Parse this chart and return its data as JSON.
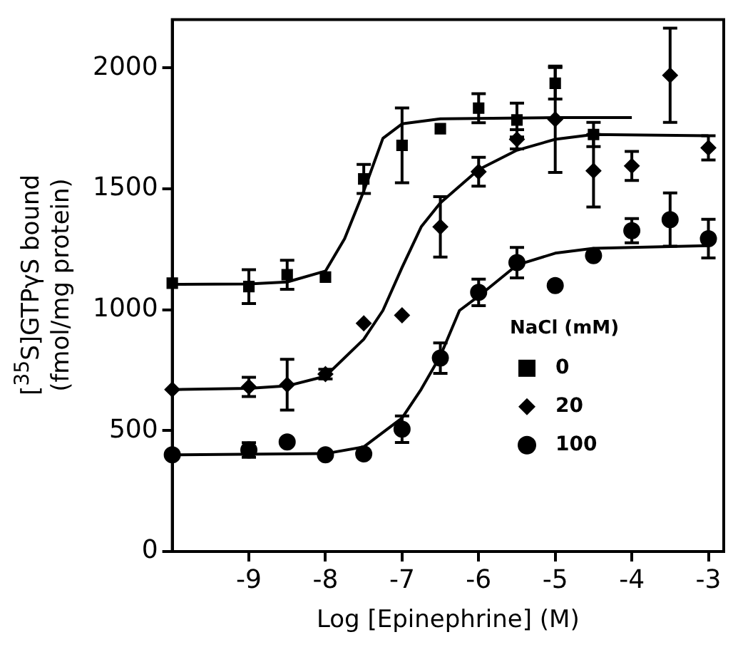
{
  "chart_data": {
    "type": "scatter",
    "xlabel": "Log [Epinephrine] (M)",
    "ylabel": "[$^{35}$S]GTPγS bound\n(fmol/mg protein)",
    "legend_title": "NaCl (mM)",
    "legend": "center right",
    "xlim": [
      -10,
      -2.8
    ],
    "xticks": [
      -9,
      -8,
      -7,
      -6,
      -5,
      -4,
      -3
    ],
    "ylim": [
      0,
      2200
    ],
    "yticks": [
      0,
      500,
      1000,
      1500,
      2000
    ],
    "series": [
      {
        "name": "0",
        "color": "#000000",
        "marker": "square",
        "x": [
          -10,
          -9,
          -8.5,
          -8,
          -7.5,
          -7,
          -6.5,
          -6,
          -5.5,
          -5,
          -4.5
        ],
        "values": [
          1110,
          1096,
          1145,
          1135,
          1541,
          1680,
          1749,
          1834,
          1785,
          1937,
          1725
        ],
        "errors": [
          null,
          70,
          60,
          null,
          60,
          155,
          null,
          60,
          70,
          65,
          50
        ]
      },
      {
        "name": "20",
        "color": "#000000",
        "marker": "diamond",
        "x": [
          -10,
          -9,
          -8.5,
          -8,
          -7.5,
          -7,
          -6.5,
          -6,
          -5.5,
          -5,
          -4.5,
          -4,
          -3.5,
          -3
        ],
        "values": [
          670,
          681,
          690,
          734,
          944,
          977,
          1343,
          1571,
          1705,
          1788,
          1575,
          1595,
          1970,
          1670
        ],
        "errors": [
          null,
          40,
          105,
          20,
          null,
          null,
          125,
          60,
          40,
          220,
          150,
          60,
          195,
          50
        ]
      },
      {
        "name": "100",
        "color": "#000000",
        "marker": "circle",
        "x": [
          -10,
          -9,
          -8.5,
          -8,
          -7.5,
          -7,
          -6.5,
          -6,
          -5.5,
          -5,
          -4.5,
          -4,
          -3.5,
          -3
        ],
        "values": [
          400,
          420,
          453,
          400,
          404,
          506,
          800,
          1072,
          1195,
          1100,
          1224,
          1327,
          1373,
          1294
        ],
        "errors": [
          null,
          30,
          null,
          null,
          null,
          55,
          63,
          55,
          63,
          null,
          null,
          50,
          110,
          80
        ]
      },
      {
        "type": "line",
        "color": "#000000",
        "marker": "none",
        "x": [
          -10,
          -9,
          -8.5,
          -8,
          -7.75,
          -7.5,
          -7.25,
          -7,
          -6.5,
          -5,
          -4
        ],
        "values": [
          1105,
          1107,
          1115,
          1160,
          1294,
          1491,
          1709,
          1769,
          1790,
          1795,
          1795
        ]
      },
      {
        "type": "line",
        "color": "#000000",
        "marker": "none",
        "x": [
          -10,
          -9,
          -8.5,
          -8,
          -7.5,
          -7.25,
          -7,
          -6.75,
          -6.5,
          -6,
          -5.5,
          -5,
          -4.5,
          -3
        ],
        "values": [
          670,
          675,
          685,
          725,
          878,
          997,
          1175,
          1343,
          1442,
          1580,
          1660,
          1705,
          1725,
          1720
        ]
      },
      {
        "type": "line",
        "color": "#000000",
        "marker": "none",
        "x": [
          -10,
          -8,
          -7.5,
          -7,
          -6.75,
          -6.5,
          -6.25,
          -6,
          -5.5,
          -5,
          -4.5,
          -3
        ],
        "values": [
          400,
          405,
          433,
          552,
          671,
          809,
          997,
          1056,
          1185,
          1234,
          1254,
          1265
        ]
      }
    ]
  }
}
